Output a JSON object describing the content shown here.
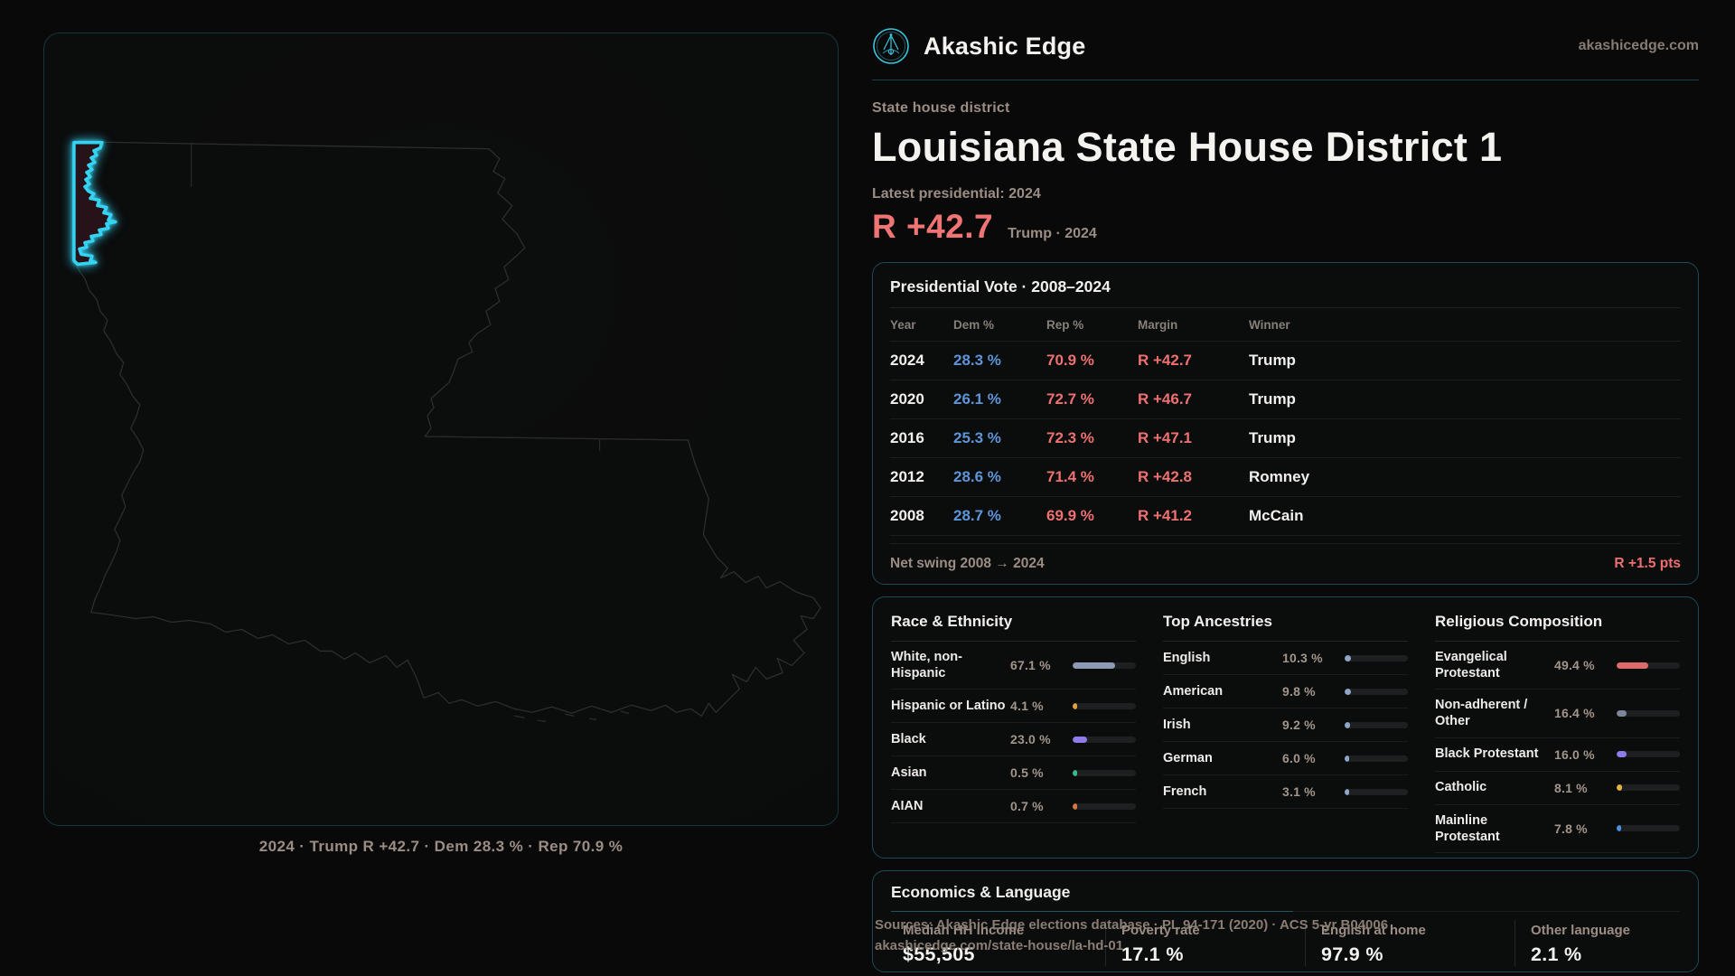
{
  "brand": {
    "name": "Akashic Edge",
    "domain": "akashicedge.com"
  },
  "colors": {
    "accent_cyan": "#35d3f2",
    "rep_red": "#ee7171",
    "dem_blue": "#5d95d8",
    "card_border_teal": "#1d4a55"
  },
  "page": {
    "kicker": "State house district",
    "title": "Louisiana State House District 1",
    "latest_label": "Latest presidential: 2024",
    "margin_value": "R +42.7",
    "margin_caption": "Trump · 2024"
  },
  "map": {
    "caption": "2024 · Trump R +42.7 · Dem 28.3 % · Rep 70.9 %"
  },
  "presidential": {
    "title": "Presidential Vote · 2008–2024",
    "columns": [
      "Year",
      "Dem %",
      "Rep %",
      "Margin",
      "Winner"
    ],
    "rows": [
      {
        "year": "2024",
        "dem": "28.3 %",
        "rep": "70.9 %",
        "margin": "R +42.7",
        "winner": "Trump"
      },
      {
        "year": "2020",
        "dem": "26.1 %",
        "rep": "72.7 %",
        "margin": "R +46.7",
        "winner": "Trump"
      },
      {
        "year": "2016",
        "dem": "25.3 %",
        "rep": "72.3 %",
        "margin": "R +47.1",
        "winner": "Trump"
      },
      {
        "year": "2012",
        "dem": "28.6 %",
        "rep": "71.4 %",
        "margin": "R +42.8",
        "winner": "Romney"
      },
      {
        "year": "2008",
        "dem": "28.7 %",
        "rep": "69.9 %",
        "margin": "R +41.2",
        "winner": "McCain"
      }
    ],
    "net_swing_label": "Net swing 2008 → 2024",
    "net_swing_value": "R +1.5 pts"
  },
  "demographics": {
    "race": {
      "title": "Race & Ethnicity",
      "rows": [
        {
          "label": "White, non-Hispanic",
          "value": "67.1 %",
          "pct": 67.1,
          "color": "#8d9ab5"
        },
        {
          "label": "Hispanic or Latino",
          "value": "4.1 %",
          "pct": 4.1,
          "color": "#e3a23a"
        },
        {
          "label": "Black",
          "value": "23.0 %",
          "pct": 23.0,
          "color": "#8f7bea"
        },
        {
          "label": "Asian",
          "value": "0.5 %",
          "pct": 0.5,
          "color": "#38b98f"
        },
        {
          "label": "AIAN",
          "value": "0.7 %",
          "pct": 0.7,
          "color": "#d87840"
        }
      ]
    },
    "ancestries": {
      "title": "Top Ancestries",
      "rows": [
        {
          "label": "English",
          "value": "10.3 %",
          "pct": 10.3,
          "color": "#8ea7c9"
        },
        {
          "label": "American",
          "value": "9.8 %",
          "pct": 9.8,
          "color": "#8ea7c9"
        },
        {
          "label": "Irish",
          "value": "9.2 %",
          "pct": 9.2,
          "color": "#8ea7c9"
        },
        {
          "label": "German",
          "value": "6.0 %",
          "pct": 6.0,
          "color": "#8ea7c9"
        },
        {
          "label": "French",
          "value": "3.1 %",
          "pct": 3.1,
          "color": "#8ea7c9"
        }
      ]
    },
    "religion": {
      "title": "Religious Composition",
      "rows": [
        {
          "label": "Evangelical Protestant",
          "value": "49.4 %",
          "pct": 49.4,
          "color": "#dd6b6b"
        },
        {
          "label": "Non-adherent / Other",
          "value": "16.4 %",
          "pct": 16.4,
          "color": "#7b8699"
        },
        {
          "label": "Black Protestant",
          "value": "16.0 %",
          "pct": 16.0,
          "color": "#8f7bea"
        },
        {
          "label": "Catholic",
          "value": "8.1 %",
          "pct": 8.1,
          "color": "#e5b33c"
        },
        {
          "label": "Mainline Protestant",
          "value": "7.8 %",
          "pct": 7.8,
          "color": "#4a8fe0"
        }
      ]
    }
  },
  "economics": {
    "title": "Economics & Language",
    "stats": [
      {
        "label": "Median HH income",
        "value": "$55,505"
      },
      {
        "label": "Poverty rate",
        "value": "17.1 %"
      },
      {
        "label": "English at home",
        "value": "97.9 %"
      },
      {
        "label": "Other language",
        "value": "2.1 %"
      }
    ]
  },
  "sources": {
    "line1": "Sources: Akashic Edge elections database · PL 94-171 (2020) · ACS 5-yr B04006",
    "line2": "akashicedge.com/state-house/la-hd-01"
  }
}
